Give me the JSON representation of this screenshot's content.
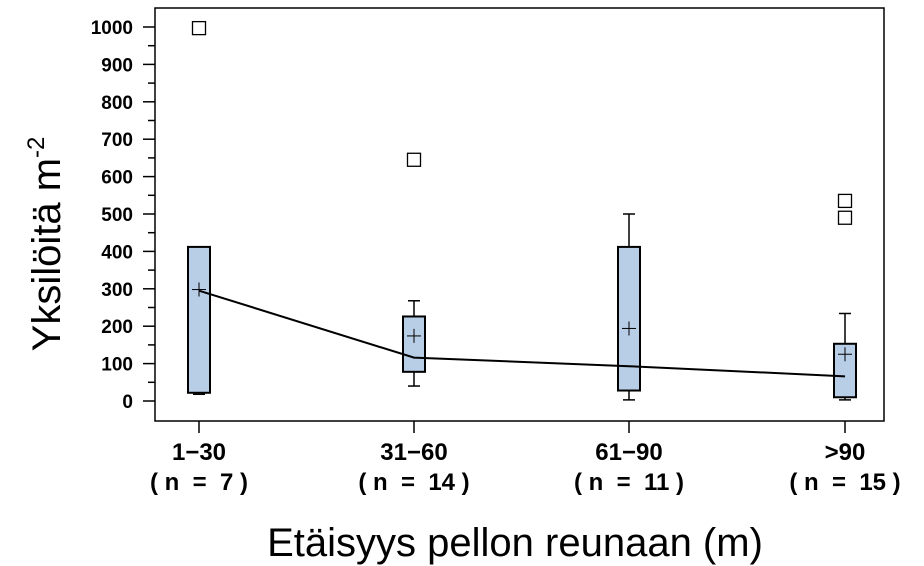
{
  "chart_data": {
    "type": "box",
    "xlabel": "Etäisyys pellon reunaan (m)",
    "ylabel": "Yksilöitä m",
    "ylabel_sup": "-2",
    "ylim": [
      -70,
      1060
    ],
    "yticks": [
      0,
      100,
      200,
      300,
      400,
      500,
      600,
      700,
      800,
      900,
      1000
    ],
    "grid": false,
    "legend": "none",
    "colors": {
      "box_fill": "#b8cde6",
      "line": "#000000"
    },
    "categories": [
      {
        "label": "1−30",
        "n_label": "( n  =  7 )",
        "q1": 22,
        "median": 295,
        "q3": 412,
        "whisker_low": 18,
        "whisker_high": 412,
        "mean": 298,
        "outliers": [
          997
        ]
      },
      {
        "label": "31−60",
        "n_label": "( n  =  14 )",
        "q1": 78,
        "median": 116,
        "q3": 226,
        "whisker_low": 40,
        "whisker_high": 268,
        "mean": 174,
        "outliers": [
          645
        ]
      },
      {
        "label": "61−90",
        "n_label": "( n  =  11 )",
        "q1": 28,
        "median": 93,
        "q3": 412,
        "whisker_low": 3,
        "whisker_high": 500,
        "mean": 194,
        "outliers": []
      },
      {
        "label": ">90",
        "n_label": "( n  =  15 )",
        "q1": 10,
        "median": 66,
        "q3": 153,
        "whisker_low": 3,
        "whisker_high": 234,
        "mean": 125,
        "outliers": [
          535,
          490
        ]
      }
    ],
    "median_line": true
  }
}
